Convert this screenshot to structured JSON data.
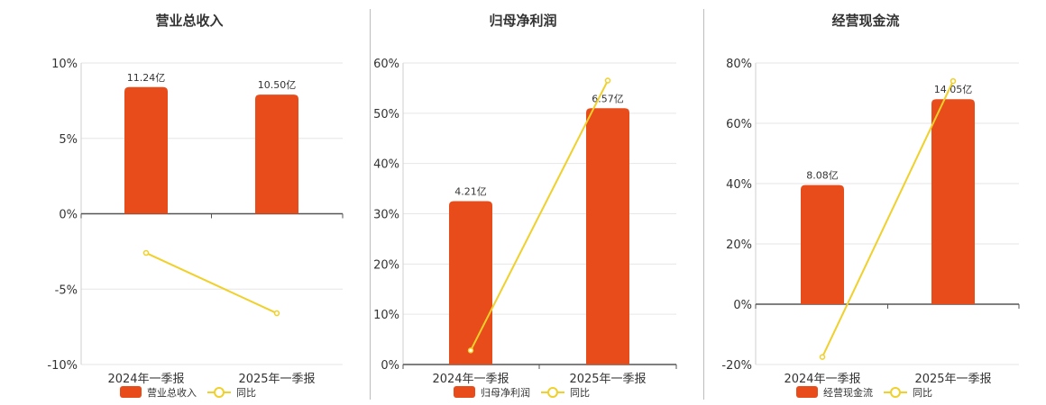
{
  "colors": {
    "bar": "#E84C1B",
    "line": "#F0D02A",
    "grid": "#e6e6e6",
    "axis": "#555555"
  },
  "legend": {
    "line_label": "同比"
  },
  "chart_data": [
    {
      "type": "bar",
      "title": "营业总收入",
      "categories": [
        "2024年一季报",
        "2025年一季报"
      ],
      "bar_series": {
        "name": "营业总收入",
        "pct": [
          8.4,
          7.9
        ],
        "labels": [
          "11.24亿",
          "10.50亿"
        ]
      },
      "line_series": {
        "name": "同比",
        "values": [
          -2.6,
          -6.6
        ]
      },
      "ylim": [
        -10,
        10
      ],
      "yticks": [
        10,
        5,
        0,
        -5,
        -10
      ],
      "ytick_labels": [
        "10%",
        "5%",
        "0%",
        "-5%",
        "-10%"
      ]
    },
    {
      "type": "bar",
      "title": "归母净利润",
      "categories": [
        "2024年一季报",
        "2025年一季报"
      ],
      "bar_series": {
        "name": "归母净利润",
        "pct": [
          32.5,
          51.0
        ],
        "labels": [
          "4.21亿",
          "6.57亿"
        ]
      },
      "line_series": {
        "name": "同比",
        "values": [
          2.8,
          56.5
        ]
      },
      "ylim": [
        0,
        60
      ],
      "yticks": [
        60,
        50,
        40,
        30,
        20,
        10,
        0
      ],
      "ytick_labels": [
        "60%",
        "50%",
        "40%",
        "30%",
        "20%",
        "10%",
        "0%"
      ]
    },
    {
      "type": "bar",
      "title": "经营现金流",
      "categories": [
        "2024年一季报",
        "2025年一季报"
      ],
      "bar_series": {
        "name": "经营现金流",
        "pct": [
          39.5,
          68.0
        ],
        "labels": [
          "8.08亿",
          "14.05亿"
        ]
      },
      "line_series": {
        "name": "同比",
        "values": [
          -17.5,
          74.0
        ]
      },
      "ylim": [
        -20,
        80
      ],
      "yticks": [
        80,
        60,
        40,
        20,
        0,
        -20
      ],
      "ytick_labels": [
        "80%",
        "60%",
        "40%",
        "20%",
        "0%",
        "-20%"
      ]
    }
  ]
}
